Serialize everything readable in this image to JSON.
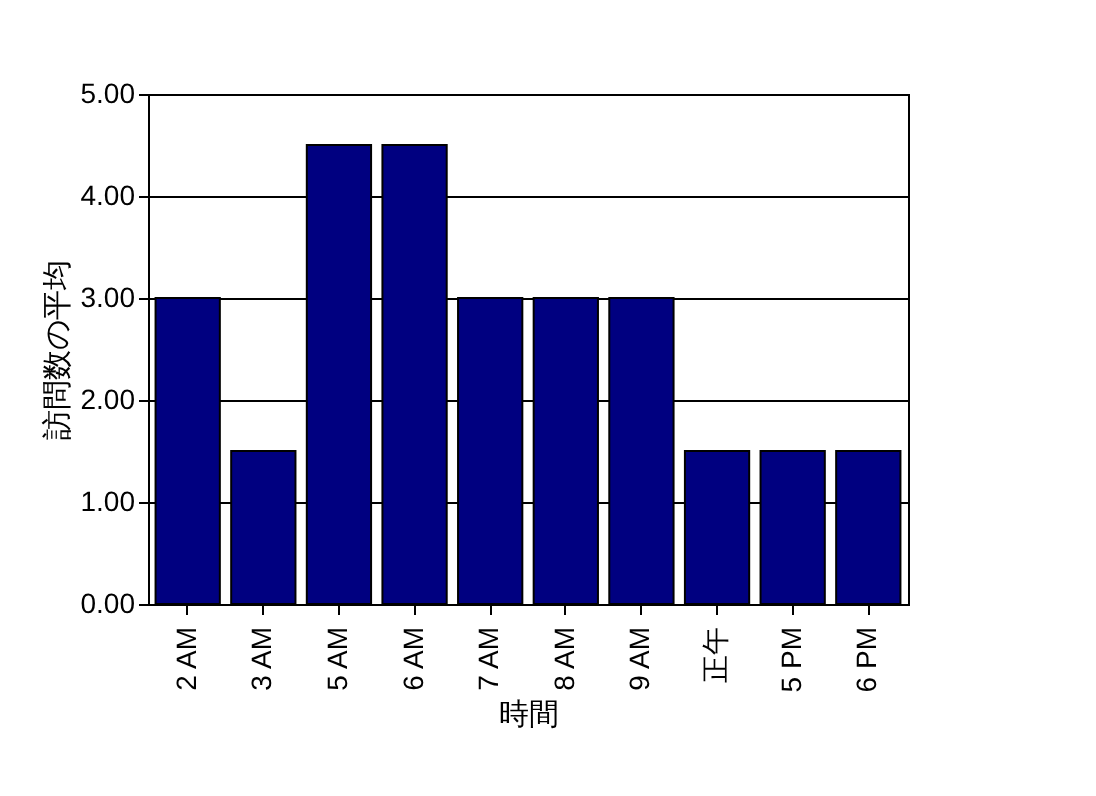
{
  "chart_data": {
    "type": "bar",
    "xlabel": "時間",
    "ylabel": "訪問数の平均",
    "categories": [
      "2 AM",
      "3 AM",
      "5 AM",
      "6 AM",
      "7 AM",
      "8 AM",
      "9 AM",
      "正午",
      "5 PM",
      "6 PM"
    ],
    "values": [
      3,
      1.5,
      4.5,
      4.5,
      3,
      3,
      3,
      1.5,
      1.5,
      1.5
    ],
    "color": "#000080",
    "ylim": [
      0,
      5
    ],
    "yticks": [
      {
        "value": 0,
        "label": "0.00"
      },
      {
        "value": 1,
        "label": "1.00"
      },
      {
        "value": 2,
        "label": "2.00"
      },
      {
        "value": 3,
        "label": "3.00"
      },
      {
        "value": 4,
        "label": "4.00"
      },
      {
        "value": 5,
        "label": "5.00"
      }
    ],
    "grid": "y"
  }
}
